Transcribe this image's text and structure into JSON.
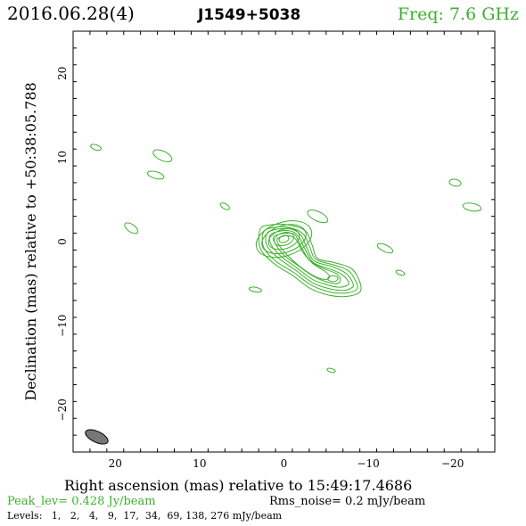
{
  "header": {
    "date": "2016.06.28(4)",
    "source": "J1549+5038",
    "freq": "Freq: 7.6 GHz"
  },
  "colors": {
    "contour": "#3cb02c",
    "frame": "#000000",
    "beam": "#777777"
  },
  "footer": {
    "peak": "Peak_lev=  0.428 Jy/beam",
    "rms": "Rms_noise=  0.2 mJy/beam",
    "levels": "Levels:   1,   2,   4,   9,  17,  34,  69, 138, 276 mJy/beam"
  },
  "chart_data": {
    "type": "contour",
    "xlabel": "Right ascension (mas) relative to 15:49:17.4686",
    "ylabel": "Declination (mas) relative to +50:38:05.788",
    "xlim": [
      25,
      -25
    ],
    "ylim": [
      -25,
      25
    ],
    "xticks": [
      20,
      10,
      0,
      -10,
      -20
    ],
    "xtick_labels": [
      "20",
      "10",
      "0",
      "−10",
      "−20"
    ],
    "yticks": [
      20,
      10,
      0,
      -10,
      -20
    ],
    "ytick_labels": [
      "20",
      "10",
      "0",
      "−10",
      "−20"
    ],
    "minor_step": 2,
    "beam": {
      "x": 22.2,
      "y": -23.2,
      "major": 2.9,
      "minor": 1.3,
      "pa_deg": -25
    },
    "core": {
      "x": 0,
      "y": 0.3,
      "levels": [
        [
          3.4,
          2.0
        ],
        [
          2.7,
          1.6
        ],
        [
          1.9,
          1.15
        ],
        [
          1.2,
          0.75
        ],
        [
          0.6,
          0.4
        ]
      ]
    },
    "jet_contours": [
      [
        [
          2.8,
          1.5
        ],
        [
          1.5,
          2.0
        ],
        [
          -0.5,
          2.0
        ],
        [
          -2.5,
          1.3
        ],
        [
          -3.3,
          -0.3
        ],
        [
          -4.0,
          -2.0
        ],
        [
          -6.0,
          -2.5
        ],
        [
          -8.0,
          -3.2
        ],
        [
          -9.0,
          -4.8
        ],
        [
          -9.0,
          -6.0
        ],
        [
          -7.5,
          -6.5
        ],
        [
          -5.5,
          -6.4
        ],
        [
          -3.2,
          -5.6
        ],
        [
          -1.0,
          -4.0
        ],
        [
          1.2,
          -2.6
        ],
        [
          2.8,
          -0.8
        ]
      ],
      [
        [
          2.4,
          1.2
        ],
        [
          1.0,
          1.7
        ],
        [
          -0.5,
          1.7
        ],
        [
          -2.2,
          1.0
        ],
        [
          -3.0,
          -0.5
        ],
        [
          -3.8,
          -2.1
        ],
        [
          -6.0,
          -2.8
        ],
        [
          -7.7,
          -3.5
        ],
        [
          -8.6,
          -4.9
        ],
        [
          -8.6,
          -5.7
        ],
        [
          -7.4,
          -6.1
        ],
        [
          -5.5,
          -6.0
        ],
        [
          -3.3,
          -5.2
        ],
        [
          -1.2,
          -3.7
        ],
        [
          1.0,
          -2.3
        ],
        [
          2.4,
          -0.7
        ]
      ],
      [
        [
          2.0,
          1.0
        ],
        [
          0.6,
          1.5
        ],
        [
          -0.8,
          1.5
        ],
        [
          -2.0,
          0.8
        ],
        [
          -2.7,
          -0.7
        ],
        [
          -3.6,
          -2.3
        ],
        [
          -5.8,
          -3.0
        ],
        [
          -7.4,
          -3.8
        ],
        [
          -8.2,
          -5.0
        ],
        [
          -8.0,
          -5.5
        ],
        [
          -7.0,
          -5.8
        ],
        [
          -5.4,
          -5.6
        ],
        [
          -3.4,
          -4.9
        ],
        [
          -1.4,
          -3.4
        ],
        [
          0.6,
          -2.0
        ],
        [
          2.0,
          -0.5
        ]
      ],
      [
        [
          1.6,
          0.8
        ],
        [
          0.2,
          1.3
        ],
        [
          -1.0,
          1.2
        ],
        [
          -1.8,
          0.5
        ],
        [
          -2.5,
          -0.9
        ],
        [
          -3.5,
          -2.5
        ],
        [
          -5.6,
          -3.3
        ],
        [
          -7.0,
          -4.0
        ],
        [
          -7.7,
          -4.9
        ],
        [
          -7.3,
          -5.3
        ],
        [
          -6.3,
          -5.4
        ],
        [
          -5.0,
          -5.1
        ],
        [
          -3.4,
          -4.5
        ],
        [
          -1.5,
          -3.1
        ],
        [
          0.3,
          -1.8
        ],
        [
          1.5,
          -0.4
        ]
      ],
      [
        [
          1.2,
          0.6
        ],
        [
          -0.2,
          1.0
        ],
        [
          -1.3,
          0.8
        ],
        [
          -2.0,
          -0.5
        ],
        [
          -3.0,
          -2.2
        ],
        [
          -4.5,
          -3.1
        ],
        [
          -6.2,
          -3.8
        ],
        [
          -6.7,
          -4.6
        ],
        [
          -6.2,
          -5.0
        ],
        [
          -4.8,
          -4.7
        ],
        [
          -3.3,
          -4.0
        ],
        [
          -1.6,
          -2.8
        ],
        [
          0.0,
          -1.6
        ],
        [
          1.0,
          -0.3
        ]
      ],
      [
        [
          0.8,
          0.3
        ],
        [
          -0.4,
          0.7
        ],
        [
          -1.4,
          0.3
        ],
        [
          -2.2,
          -1.2
        ],
        [
          -3.4,
          -2.6
        ],
        [
          -4.8,
          -3.5
        ],
        [
          -5.4,
          -4.1
        ],
        [
          -5.0,
          -4.5
        ],
        [
          -3.8,
          -4.2
        ],
        [
          -2.2,
          -3.2
        ],
        [
          -0.8,
          -2.0
        ],
        [
          0.4,
          -0.7
        ]
      ]
    ],
    "knots": [
      {
        "x": -5.8,
        "y": -4.4,
        "rx": 0.6,
        "ry": 0.35
      }
    ],
    "blobs": [
      {
        "x": 22.3,
        "y": 11.2,
        "rx": 0.65,
        "ry": 0.3,
        "rot": -20
      },
      {
        "x": 14.4,
        "y": 10.2,
        "rx": 1.2,
        "ry": 0.55,
        "rot": -25
      },
      {
        "x": 15.2,
        "y": 7.9,
        "rx": 1.0,
        "ry": 0.4,
        "rot": -15
      },
      {
        "x": 7.0,
        "y": 4.2,
        "rx": 0.6,
        "ry": 0.3,
        "rot": -30
      },
      {
        "x": 18.1,
        "y": 1.6,
        "rx": 0.9,
        "ry": 0.45,
        "rot": -35
      },
      {
        "x": -4.0,
        "y": 3.0,
        "rx": 1.3,
        "ry": 0.55,
        "rot": -25
      },
      {
        "x": -12.0,
        "y": -0.8,
        "rx": 1.0,
        "ry": 0.4,
        "rot": -25
      },
      {
        "x": -13.8,
        "y": -3.7,
        "rx": 0.55,
        "ry": 0.25,
        "rot": -20
      },
      {
        "x": -20.3,
        "y": 7.0,
        "rx": 0.7,
        "ry": 0.4,
        "rot": -10
      },
      {
        "x": -22.3,
        "y": 4.1,
        "rx": 1.1,
        "ry": 0.45,
        "rot": -10
      },
      {
        "x": 3.4,
        "y": -5.7,
        "rx": 0.75,
        "ry": 0.28,
        "rot": -10
      },
      {
        "x": -5.6,
        "y": -15.3,
        "rx": 0.5,
        "ry": 0.22,
        "rot": -15
      }
    ]
  }
}
